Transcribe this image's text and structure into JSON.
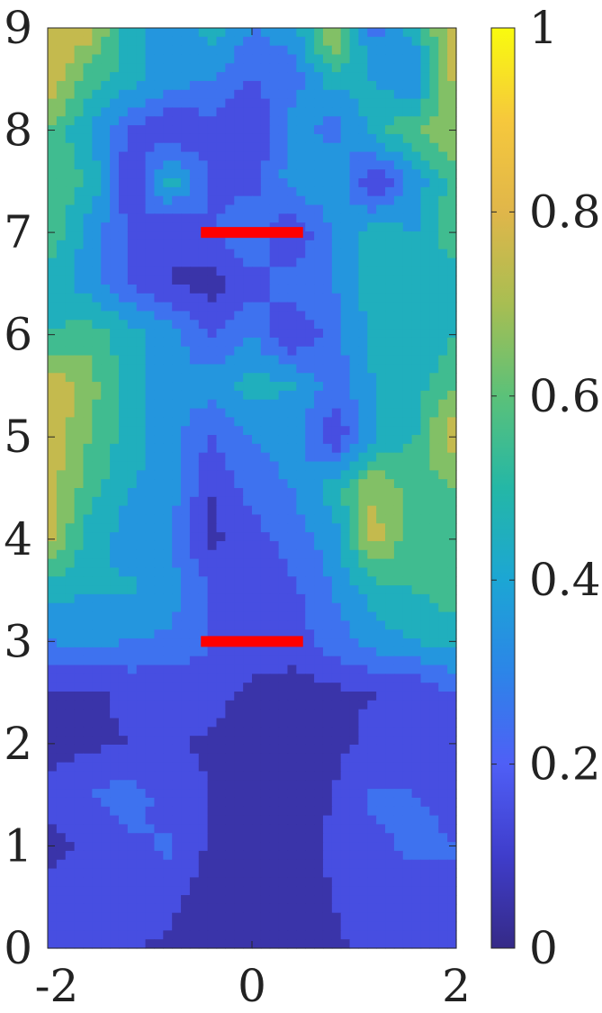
{
  "chart_data": {
    "type": "heatmap",
    "title": "",
    "xlabel": "",
    "ylabel": "",
    "xlim": [
      -2,
      2
    ],
    "ylim": [
      0,
      9
    ],
    "x_ticks": [
      "-2",
      "0",
      "2"
    ],
    "x_tick_values": [
      -2,
      0,
      2
    ],
    "y_ticks": [
      "0",
      "1",
      "2",
      "3",
      "4",
      "5",
      "6",
      "7",
      "8",
      "9"
    ],
    "y_tick_values": [
      0,
      1,
      2,
      3,
      4,
      5,
      6,
      7,
      8,
      9
    ],
    "colorbar": {
      "range": [
        0,
        1
      ],
      "ticks": [
        "0",
        "0.2",
        "0.4",
        "0.6",
        "0.8",
        "1"
      ],
      "tick_values": [
        0,
        0.2,
        0.4,
        0.6,
        0.8,
        1
      ],
      "colormap": "parula",
      "colors": [
        "#352a87",
        "#3f3dcb",
        "#4f5ff6",
        "#2c85e8",
        "#1ca6d4",
        "#24b7a6",
        "#5bc179",
        "#a8be52",
        "#e0b64a",
        "#f6c83c",
        "#f9fb0e"
      ]
    },
    "grid": false,
    "legend": "none",
    "x": [
      -2,
      -1.6,
      -1.2,
      -0.8,
      -0.4,
      0,
      0.4,
      0.8,
      1.2,
      1.6,
      2
    ],
    "y": [
      0,
      0.5,
      1,
      1.5,
      2,
      2.5,
      3,
      3.5,
      4,
      4.5,
      5,
      5.5,
      6,
      6.5,
      7,
      7.5,
      8,
      8.5,
      9
    ],
    "z": [
      [
        0.15,
        0.12,
        0.1,
        0.08,
        0.06,
        0.05,
        0.05,
        0.08,
        0.12,
        0.15,
        0.18
      ],
      [
        0.18,
        0.15,
        0.2,
        0.12,
        0.05,
        0.04,
        0.05,
        0.1,
        0.2,
        0.15,
        0.2
      ],
      [
        0.05,
        0.12,
        0.18,
        0.22,
        0.08,
        0.04,
        0.06,
        0.12,
        0.18,
        0.22,
        0.2
      ],
      [
        0.15,
        0.2,
        0.25,
        0.15,
        0.1,
        0.05,
        0.05,
        0.1,
        0.22,
        0.2,
        0.18
      ],
      [
        0.05,
        0.08,
        0.1,
        0.12,
        0.08,
        0.05,
        0.06,
        0.08,
        0.12,
        0.1,
        0.15
      ],
      [
        0.1,
        0.08,
        0.12,
        0.1,
        0.15,
        0.06,
        0.05,
        0.08,
        0.1,
        0.12,
        0.2
      ],
      [
        0.3,
        0.32,
        0.3,
        0.28,
        0.2,
        0.2,
        0.15,
        0.25,
        0.35,
        0.4,
        0.45
      ],
      [
        0.45,
        0.4,
        0.42,
        0.35,
        0.2,
        0.12,
        0.18,
        0.3,
        0.45,
        0.5,
        0.55
      ],
      [
        0.75,
        0.45,
        0.35,
        0.3,
        0.08,
        0.15,
        0.25,
        0.35,
        0.75,
        0.5,
        0.5
      ],
      [
        0.75,
        0.55,
        0.4,
        0.35,
        0.1,
        0.25,
        0.3,
        0.45,
        0.7,
        0.55,
        0.6
      ],
      [
        0.8,
        0.6,
        0.45,
        0.35,
        0.2,
        0.3,
        0.35,
        0.1,
        0.4,
        0.5,
        0.8
      ],
      [
        0.8,
        0.65,
        0.45,
        0.3,
        0.35,
        0.45,
        0.4,
        0.25,
        0.4,
        0.45,
        0.6
      ],
      [
        0.5,
        0.55,
        0.45,
        0.35,
        0.2,
        0.3,
        0.1,
        0.25,
        0.45,
        0.4,
        0.5
      ],
      [
        0.45,
        0.35,
        0.2,
        0.1,
        0.05,
        0.15,
        0.25,
        0.3,
        0.45,
        0.4,
        0.45
      ],
      [
        0.6,
        0.35,
        0.2,
        0.1,
        0.18,
        0.3,
        0.1,
        0.3,
        0.45,
        0.4,
        0.6
      ],
      [
        0.55,
        0.5,
        0.1,
        0.45,
        0.2,
        0.15,
        0.35,
        0.4,
        0.1,
        0.35,
        0.55
      ],
      [
        0.6,
        0.4,
        0.2,
        0.1,
        0.15,
        0.1,
        0.35,
        0.25,
        0.45,
        0.6,
        0.7
      ],
      [
        0.8,
        0.55,
        0.45,
        0.35,
        0.3,
        0.2,
        0.25,
        0.45,
        0.4,
        0.3,
        0.75
      ],
      [
        0.8,
        0.75,
        0.45,
        0.3,
        0.45,
        0.3,
        0.35,
        0.75,
        0.25,
        0.45,
        0.8
      ]
    ],
    "annotations": [
      {
        "type": "segment",
        "x0": -0.5,
        "x1": 0.5,
        "y": 7,
        "color": "#ff0000"
      },
      {
        "type": "segment",
        "x0": -0.5,
        "x1": 0.5,
        "y": 3,
        "color": "#ff0000"
      }
    ]
  }
}
